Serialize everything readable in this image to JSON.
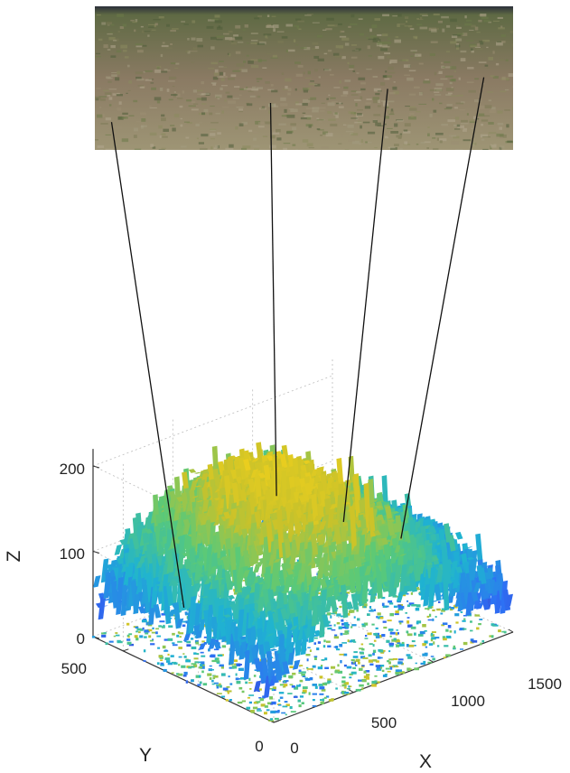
{
  "photo": {
    "kind": "ground-surface-photo",
    "colors": {
      "sky": "#2b2f3a",
      "grass_dark": "#5f6a44",
      "grass_light": "#9e9575",
      "soil": "#8a7a63"
    }
  },
  "chart_data": {
    "type": "surface3d",
    "title": "",
    "xlabel": "X",
    "ylabel": "Y",
    "zlabel": "Z",
    "xlim": [
      0,
      1500
    ],
    "ylim": [
      0,
      600
    ],
    "zlim": [
      0,
      220
    ],
    "xticks": [
      "0",
      "500",
      "1000",
      "1500"
    ],
    "yticks": [
      "0",
      "500"
    ],
    "zticks": [
      "0",
      "100",
      "200"
    ],
    "grid": true,
    "colormap": [
      "#3e26a8",
      "#2e6ff5",
      "#1fb3d1",
      "#5ac978",
      "#c9c22a",
      "#f0d01c"
    ],
    "ridge_profile": [
      {
        "x": 0,
        "z": 75
      },
      {
        "x": 150,
        "z": 120
      },
      {
        "x": 300,
        "z": 155
      },
      {
        "x": 450,
        "z": 175
      },
      {
        "x": 600,
        "z": 185
      },
      {
        "x": 750,
        "z": 180
      },
      {
        "x": 900,
        "z": 160
      },
      {
        "x": 1050,
        "z": 130
      },
      {
        "x": 1200,
        "z": 105
      },
      {
        "x": 1350,
        "z": 85
      },
      {
        "x": 1500,
        "z": 65
      }
    ],
    "projection_lines": [
      {
        "image_x": 0.04,
        "surface_x": 60,
        "surface_z": 75
      },
      {
        "image_x": 0.42,
        "surface_x": 640,
        "surface_z": 165
      },
      {
        "image_x": 0.7,
        "surface_x": 1060,
        "surface_z": 105
      },
      {
        "image_x": 0.93,
        "surface_x": 1420,
        "surface_z": 60
      }
    ]
  }
}
